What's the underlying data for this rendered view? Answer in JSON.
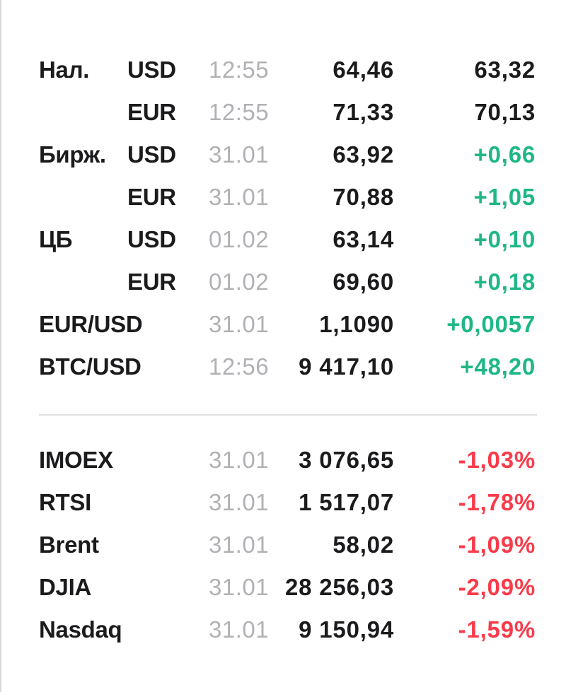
{
  "colors": {
    "text_primary": "#1b1b1d",
    "text_muted": "#b1b1b5",
    "positive": "#1eb786",
    "negative": "#fa3b4a",
    "divider": "#e1e1e1",
    "left_border": "#d8d8d8"
  },
  "currency_rows": [
    {
      "group": "Нал.",
      "instrument": "USD",
      "time": "12:55",
      "value": "64,46",
      "change": "63,32",
      "change_type": "neutral"
    },
    {
      "group": "",
      "instrument": "EUR",
      "time": "12:55",
      "value": "71,33",
      "change": "70,13",
      "change_type": "neutral"
    },
    {
      "group": "Бирж.",
      "instrument": "USD",
      "time": "31.01",
      "value": "63,92",
      "change": "+0,66",
      "change_type": "positive"
    },
    {
      "group": "",
      "instrument": "EUR",
      "time": "31.01",
      "value": "70,88",
      "change": "+1,05",
      "change_type": "positive"
    },
    {
      "group": "ЦБ",
      "instrument": "USD",
      "time": "01.02",
      "value": "63,14",
      "change": "+0,10",
      "change_type": "positive"
    },
    {
      "group": "",
      "instrument": "EUR",
      "time": "01.02",
      "value": "69,60",
      "change": "+0,18",
      "change_type": "positive"
    },
    {
      "group": "EUR/USD",
      "instrument": "",
      "time": "31.01",
      "value": "1,1090",
      "change": "+0,0057",
      "change_type": "positive"
    },
    {
      "group": "BTC/USD",
      "instrument": "",
      "time": "12:56",
      "value": "9 417,10",
      "change": "+48,20",
      "change_type": "positive"
    }
  ],
  "index_rows": [
    {
      "group": "IMOEX",
      "instrument": "",
      "time": "31.01",
      "value": "3 076,65",
      "change": "-1,03%",
      "change_type": "negative"
    },
    {
      "group": "RTSI",
      "instrument": "",
      "time": "31.01",
      "value": "1 517,07",
      "change": "-1,78%",
      "change_type": "negative"
    },
    {
      "group": "Brent",
      "instrument": "",
      "time": "31.01",
      "value": "58,02",
      "change": "-1,09%",
      "change_type": "negative"
    },
    {
      "group": "DJIA",
      "instrument": "",
      "time": "31.01",
      "value": "28 256,03",
      "change": "-2,09%",
      "change_type": "negative"
    },
    {
      "group": "Nasdaq",
      "instrument": "",
      "time": "31.01",
      "value": "9 150,94",
      "change": "-1,59%",
      "change_type": "negative"
    }
  ]
}
